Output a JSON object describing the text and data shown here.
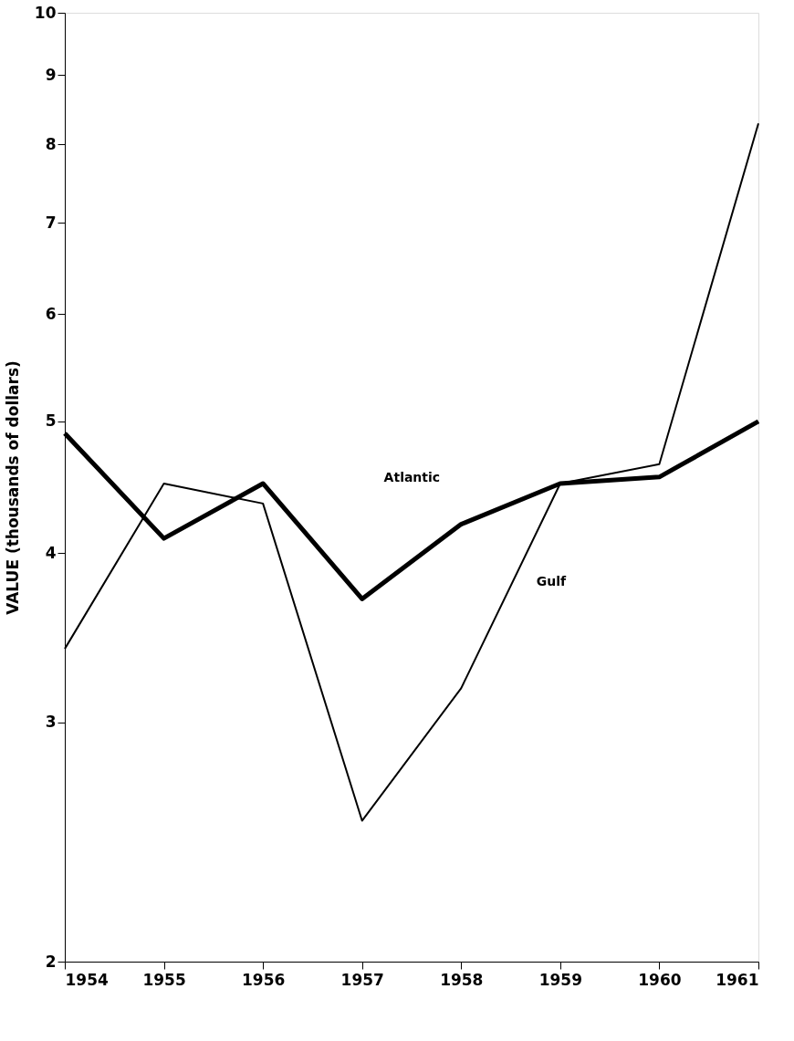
{
  "chart_data": {
    "type": "line",
    "ylabel": "VALUE  (thousands of dollars)",
    "x": [
      1954,
      1955,
      1956,
      1957,
      1958,
      1959,
      1960,
      1961
    ],
    "series": [
      {
        "color": "#000000",
        "values": [
          4.9,
          4.1,
          4.5,
          3.7,
          4.2,
          4.5,
          4.55,
          5.0
        ]
      },
      {
        "color": "#000000",
        "values": [
          3.4,
          4.5,
          4.35,
          2.54,
          3.18,
          4.5,
          4.65,
          8.29
        ]
      }
    ],
    "xlim": [
      1954,
      1961
    ],
    "xticks": [
      1954,
      1955,
      1956,
      1957,
      1958,
      1959,
      1960,
      1961
    ],
    "ylim": [
      2,
      10
    ],
    "yticks": [
      2,
      3,
      4,
      5,
      6,
      7,
      8,
      9,
      10
    ],
    "log": true,
    "grid": false,
    "marker": "none",
    "line_style": "solid",
    "annotations": [
      "Atlantic",
      "Gulf"
    ]
  }
}
